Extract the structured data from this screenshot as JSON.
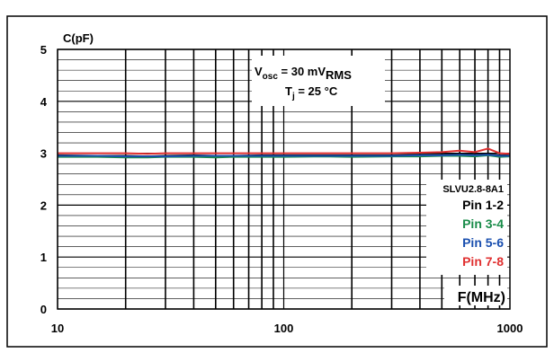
{
  "chart_data": {
    "type": "line",
    "ylabel": "C(pF)",
    "xlabel": "F(MHz)",
    "xscale": "log",
    "xlim": [
      10,
      1000
    ],
    "ylim": [
      0,
      5
    ],
    "x_ticks": [
      "10",
      "100",
      "1000"
    ],
    "y_ticks": [
      "0",
      "1",
      "2",
      "3",
      "4",
      "5"
    ],
    "annotation": {
      "v_main": "V",
      "v_sub": "osc",
      "v_mid": " = 30 mV",
      "v_sub2": "RMS",
      "t_main": "T",
      "t_sub": "j",
      "t_rest": " = 25 °C"
    },
    "legend": {
      "title": "SLVU2.8-8A1",
      "position": "right"
    },
    "series": [
      {
        "name": "Pin 1-2",
        "color": "#000000",
        "x": [
          10,
          15,
          20,
          25,
          30,
          40,
          50,
          60,
          80,
          100,
          150,
          200,
          300,
          400,
          500,
          600,
          700,
          800,
          900,
          1000
        ],
        "y": [
          2.96,
          2.95,
          2.95,
          2.94,
          2.95,
          2.96,
          2.95,
          2.95,
          2.96,
          2.96,
          2.96,
          2.96,
          2.96,
          2.97,
          2.97,
          2.98,
          2.97,
          2.98,
          2.96,
          2.96
        ]
      },
      {
        "name": "Pin 3-4",
        "color": "#1a8c4a",
        "x": [
          10,
          15,
          20,
          25,
          30,
          40,
          50,
          60,
          80,
          100,
          150,
          200,
          300,
          400,
          500,
          600,
          700,
          800,
          900,
          1000
        ],
        "y": [
          2.93,
          2.93,
          2.92,
          2.92,
          2.93,
          2.93,
          2.92,
          2.93,
          2.93,
          2.93,
          2.94,
          2.93,
          2.94,
          2.94,
          2.95,
          2.95,
          2.94,
          2.96,
          2.93,
          2.94
        ]
      },
      {
        "name": "Pin 5-6",
        "color": "#1a4faf",
        "x": [
          10,
          15,
          20,
          25,
          30,
          40,
          50,
          60,
          80,
          100,
          150,
          200,
          300,
          400,
          500,
          600,
          700,
          800,
          900,
          1000
        ],
        "y": [
          2.95,
          2.95,
          2.94,
          2.94,
          2.94,
          2.95,
          2.95,
          2.95,
          2.95,
          2.95,
          2.95,
          2.95,
          2.95,
          2.96,
          2.96,
          2.97,
          2.96,
          2.97,
          2.95,
          2.95
        ]
      },
      {
        "name": "Pin 7-8",
        "color": "#e03030",
        "x": [
          10,
          15,
          20,
          25,
          30,
          40,
          50,
          60,
          80,
          100,
          150,
          200,
          300,
          400,
          500,
          600,
          700,
          800,
          900,
          1000
        ],
        "y": [
          3.0,
          3.0,
          3.0,
          2.99,
          3.0,
          3.0,
          3.0,
          3.0,
          3.0,
          3.0,
          3.0,
          3.0,
          3.0,
          3.01,
          3.02,
          3.05,
          3.02,
          3.09,
          3.0,
          2.99
        ]
      }
    ]
  }
}
